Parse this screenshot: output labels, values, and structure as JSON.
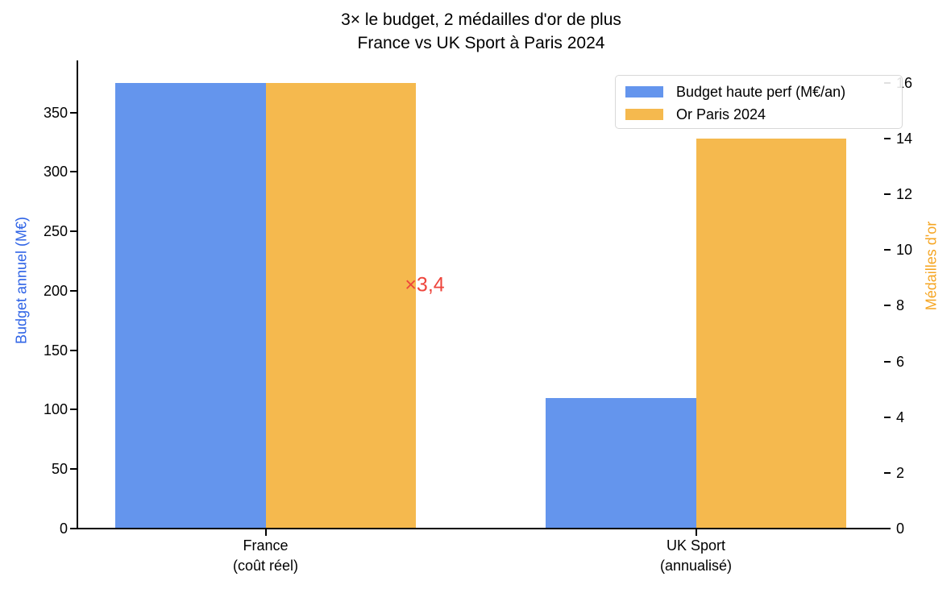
{
  "chart_data": {
    "type": "bar",
    "title": "3× le budget, 2 médailles d'or de plus",
    "subtitle": "France vs UK Sport à Paris 2024",
    "categories": [
      {
        "key": "france",
        "line1": "France",
        "line2": "(coût réel)"
      },
      {
        "key": "uk-sport",
        "line1": "UK Sport",
        "line2": "(annualisé)"
      }
    ],
    "series": [
      {
        "key": "budget",
        "name": "Budget haute perf (M€/an)",
        "axis": "left",
        "color": "#6495ed",
        "values": [
          375,
          110
        ]
      },
      {
        "key": "gold",
        "name": "Or Paris 2024",
        "axis": "right",
        "color": "#f5b94e",
        "values": [
          16,
          14
        ]
      }
    ],
    "left_axis": {
      "label": "Budget annuel (M€)",
      "color": "#2e63e6",
      "ticks": [
        0,
        50,
        100,
        150,
        200,
        250,
        300,
        350
      ],
      "range": [
        0,
        393.75
      ]
    },
    "right_axis": {
      "label": "Médailles d'or",
      "color": "#f5a522",
      "ticks": [
        0,
        2,
        4,
        6,
        8,
        10,
        12,
        14,
        16
      ],
      "range": [
        0,
        16.8
      ]
    },
    "annotation": {
      "text": "×3,4",
      "color": "#ee453c"
    },
    "legend": {
      "position": "upper right"
    },
    "grid": false
  }
}
